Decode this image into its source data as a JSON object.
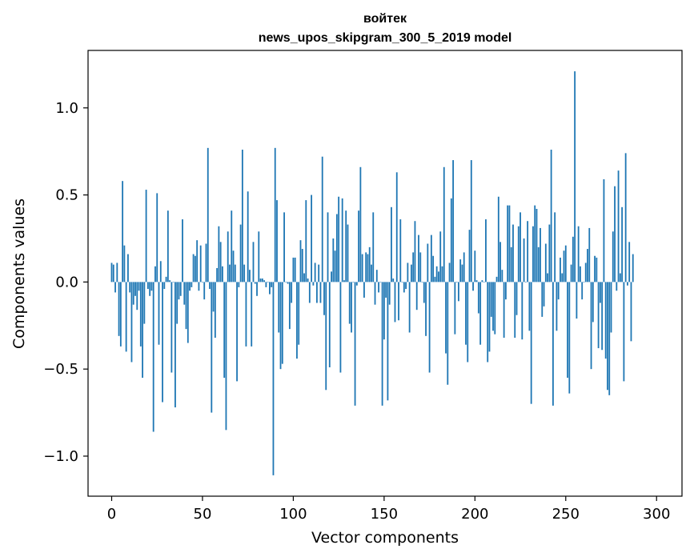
{
  "chart_data": {
    "type": "bar",
    "title": "войтек",
    "subtitle": "news_upos_skipgram_300_5_2019 model",
    "xlabel": "Vector components",
    "ylabel": "Components values",
    "xlim": [
      -13,
      314
    ],
    "ylim": [
      -1.23,
      1.33
    ],
    "xticks": [
      0,
      50,
      100,
      150,
      200,
      250,
      300
    ],
    "yticks": [
      1.0,
      0.5,
      0.0,
      -0.5,
      -1.0
    ],
    "xtick_labels": [
      "0",
      "50",
      "100",
      "150",
      "200",
      "250",
      "300"
    ],
    "ytick_labels": [
      "1.0",
      "0.5",
      "0.0",
      "−0.5",
      "−1.0"
    ],
    "grid": false,
    "color": "#1f77b4",
    "series": [
      {
        "values": [
          0.11,
          0.1,
          -0.06,
          0.11,
          -0.31,
          -0.37,
          0.58,
          0.21,
          -0.4,
          0.16,
          -0.06,
          -0.46,
          -0.13,
          -0.08,
          -0.16,
          -0.05,
          -0.37,
          -0.55,
          -0.24,
          0.53,
          -0.04,
          -0.08,
          -0.05,
          -0.86,
          0.09,
          0.51,
          -0.36,
          0.12,
          -0.69,
          -0.04,
          0.03,
          0.41,
          0.01,
          -0.52,
          0.0,
          -0.72,
          -0.24,
          -0.1,
          -0.08,
          0.36,
          -0.13,
          -0.27,
          -0.35,
          -0.05,
          -0.03,
          0.16,
          0.15,
          0.24,
          -0.05,
          0.21,
          0.0,
          -0.1,
          0.22,
          0.77,
          -0.04,
          -0.75,
          -0.17,
          -0.32,
          0.08,
          0.32,
          0.23,
          0.09,
          -0.55,
          -0.85,
          0.29,
          0.1,
          0.41,
          0.18,
          0.1,
          -0.57,
          -0.03,
          0.33,
          0.76,
          0.1,
          -0.37,
          0.52,
          0.07,
          -0.37,
          0.23,
          -0.01,
          -0.08,
          0.29,
          0.02,
          0.02,
          0.01,
          -0.03,
          0.0,
          -0.07,
          -0.03,
          -1.11,
          0.77,
          0.47,
          -0.29,
          -0.5,
          -0.47,
          0.4,
          0.0,
          -0.01,
          -0.27,
          -0.12,
          0.14,
          0.14,
          -0.44,
          -0.36,
          0.24,
          0.19,
          0.05,
          0.47,
          0.02,
          -0.12,
          0.5,
          -0.02,
          0.11,
          -0.12,
          0.1,
          -0.12,
          0.72,
          -0.19,
          -0.62,
          0.4,
          -0.49,
          0.06,
          0.25,
          0.18,
          0.39,
          0.49,
          -0.52,
          0.48,
          0.01,
          0.41,
          0.33,
          -0.24,
          -0.29,
          0.0,
          -0.71,
          -0.02,
          0.41,
          0.66,
          0.16,
          -0.09,
          0.17,
          0.16,
          0.2,
          0.1,
          0.4,
          -0.13,
          0.07,
          -0.06,
          0.0,
          -0.71,
          -0.33,
          -0.09,
          -0.68,
          -0.13,
          0.43,
          0.02,
          -0.23,
          0.63,
          -0.22,
          0.36,
          0.0,
          -0.06,
          -0.04,
          0.11,
          -0.29,
          0.1,
          0.17,
          0.35,
          -0.16,
          0.27,
          0.17,
          0.0,
          -0.12,
          -0.31,
          0.22,
          -0.52,
          0.27,
          0.15,
          0.03,
          0.09,
          0.06,
          0.29,
          0.09,
          0.66,
          -0.41,
          -0.59,
          0.11,
          0.48,
          0.7,
          -0.3,
          0.0,
          -0.11,
          0.13,
          0.1,
          0.17,
          -0.36,
          -0.46,
          0.3,
          0.7,
          -0.05,
          0.18,
          0.01,
          -0.18,
          -0.36,
          0.01,
          0.0,
          0.36,
          -0.46,
          -0.4,
          -0.2,
          -0.28,
          -0.3,
          0.03,
          0.49,
          0.23,
          0.07,
          -0.32,
          -0.1,
          0.44,
          0.44,
          0.2,
          0.33,
          -0.32,
          -0.19,
          0.32,
          0.4,
          -0.33,
          0.25,
          0.0,
          0.35,
          -0.28,
          -0.7,
          0.32,
          0.44,
          0.42,
          0.2,
          0.31,
          -0.2,
          -0.14,
          0.22,
          0.05,
          0.33,
          0.76,
          -0.71,
          0.4,
          -0.28,
          -0.1,
          0.14,
          0.05,
          0.18,
          0.21,
          -0.55,
          -0.64,
          0.1,
          0.26,
          1.21,
          -0.21,
          0.32,
          0.09,
          -0.1,
          0.0,
          0.11,
          0.19,
          0.31,
          -0.5,
          -0.23,
          0.15,
          0.14,
          -0.38,
          -0.12,
          -0.39,
          0.59,
          -0.44,
          -0.62,
          -0.65,
          -0.29,
          0.29,
          0.55,
          -0.05,
          0.64,
          0.05,
          0.43,
          -0.57,
          0.74,
          -0.02,
          0.23,
          -0.34,
          0.16
        ]
      }
    ]
  }
}
